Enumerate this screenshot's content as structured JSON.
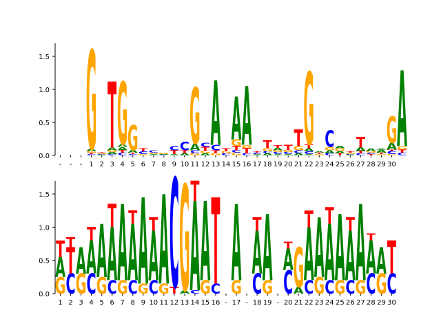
{
  "colors": {
    "A": "#008000",
    "C": "#0000ff",
    "G": "#ffa500",
    "T": "#ff0000"
  },
  "chart_data": [
    {
      "type": "sequence-logo",
      "ylim": [
        0,
        1.75
      ],
      "yticks": [
        "0.0",
        "0.5",
        "1.0",
        "1.5"
      ],
      "xticks": [
        "-",
        "-",
        "-",
        "1",
        "2",
        "3",
        "4",
        "5",
        "6",
        "7",
        "8",
        "9",
        "10",
        "11",
        "12",
        "13",
        "14",
        "15",
        "16",
        "17",
        "18",
        "19",
        "20",
        "21",
        "22",
        "23",
        "24",
        "25",
        "26",
        "27",
        "28",
        "29",
        "30"
      ],
      "positions": [
        [],
        [],
        [],
        [
          [
            "C",
            0.02
          ],
          [
            "T",
            0.02
          ],
          [
            "G",
            0.02
          ],
          [
            "A",
            0.04
          ],
          [
            "G",
            1.5
          ]
        ],
        [
          [
            "A",
            0.01
          ],
          [
            "C",
            0.01
          ],
          [
            "G",
            0.01
          ],
          [
            "T",
            0.01
          ]
        ],
        [
          [
            "C",
            0.02
          ],
          [
            "A",
            0.03
          ],
          [
            "G",
            0.03
          ],
          [
            "A",
            0.04
          ],
          [
            "T",
            1.0
          ]
        ],
        [
          [
            "C",
            0.04
          ],
          [
            "T",
            0.04
          ],
          [
            "A",
            0.05
          ],
          [
            "A",
            0.04
          ],
          [
            "G",
            0.95
          ]
        ],
        [
          [
            "C",
            0.02
          ],
          [
            "T",
            0.02
          ],
          [
            "A",
            0.04
          ],
          [
            "G",
            0.38
          ]
        ],
        [
          [
            "G",
            0.02
          ],
          [
            "C",
            0.04
          ],
          [
            "T",
            0.05
          ]
        ],
        [
          [
            "A",
            0.02
          ],
          [
            "G",
            0.02
          ],
          [
            "C",
            0.03
          ]
        ],
        [
          [
            "C",
            0.01
          ],
          [
            "A",
            0.01
          ],
          [
            "G",
            0.02
          ]
        ],
        [
          [
            "A",
            0.02
          ],
          [
            "T",
            0.06
          ],
          [
            "C",
            0.06
          ]
        ],
        [
          [
            "A",
            0.03
          ],
          [
            "T",
            0.05
          ],
          [
            "C",
            0.13
          ]
        ],
        [
          [
            "G",
            0.03
          ],
          [
            "C",
            0.05
          ],
          [
            "A",
            0.1
          ],
          [
            "G",
            0.85
          ]
        ],
        [
          [
            "A",
            0.03
          ],
          [
            "G",
            0.04
          ],
          [
            "T",
            0.06
          ],
          [
            "C",
            0.06
          ]
        ],
        [
          [
            "G",
            0.03
          ],
          [
            "T",
            0.05
          ],
          [
            "C",
            0.08
          ],
          [
            "A",
            0.98
          ]
        ],
        [
          [
            "C",
            0.03
          ],
          [
            "G",
            0.03
          ],
          [
            "T",
            0.05
          ]
        ],
        [
          [
            "G",
            0.04
          ],
          [
            "C",
            0.04
          ],
          [
            "T",
            0.06
          ],
          [
            "G",
            0.1
          ],
          [
            "A",
            0.65
          ]
        ],
        [
          [
            "C",
            0.03
          ],
          [
            "T",
            0.08
          ],
          [
            "G",
            0.05
          ],
          [
            "A",
            0.89
          ]
        ],
        [
          [
            "A",
            0.02
          ],
          [
            "C",
            0.02
          ],
          [
            "T",
            0.02
          ]
        ],
        [
          [
            "A",
            0.03
          ],
          [
            "C",
            0.03
          ],
          [
            "G",
            0.05
          ],
          [
            "T",
            0.12
          ]
        ],
        [
          [
            "A",
            0.02
          ],
          [
            "C",
            0.03
          ],
          [
            "G",
            0.03
          ],
          [
            "A",
            0.03
          ],
          [
            "T",
            0.05
          ]
        ],
        [
          [
            "A",
            0.02
          ],
          [
            "C",
            0.03
          ],
          [
            "G",
            0.03
          ],
          [
            "T",
            0.08
          ]
        ],
        [
          [
            "A",
            0.03
          ],
          [
            "C",
            0.05
          ],
          [
            "G",
            0.06
          ],
          [
            "T",
            0.25
          ]
        ],
        [
          [
            "A",
            0.02
          ],
          [
            "C",
            0.04
          ],
          [
            "A",
            0.05
          ],
          [
            "T",
            0.06
          ],
          [
            "G",
            1.1
          ]
        ],
        [
          [
            "G",
            0.02
          ],
          [
            "T",
            0.02
          ],
          [
            "A",
            0.02
          ]
        ],
        [
          [
            "C",
            0.03
          ],
          [
            "A",
            0.05
          ],
          [
            "G",
            0.05
          ],
          [
            "C",
            0.25
          ]
        ],
        [
          [
            "T",
            0.03
          ],
          [
            "A",
            0.03
          ],
          [
            "G",
            0.05
          ],
          [
            "A",
            0.03
          ]
        ],
        [
          [
            "A",
            0.01
          ],
          [
            "C",
            0.01
          ],
          [
            "G",
            0.02
          ],
          [
            "T",
            0.02
          ]
        ],
        [
          [
            "C",
            0.03
          ],
          [
            "T",
            0.03
          ],
          [
            "A",
            0.06
          ],
          [
            "T",
            0.16
          ]
        ],
        [
          [
            "T",
            0.02
          ],
          [
            "C",
            0.02
          ],
          [
            "G",
            0.03
          ],
          [
            "A",
            0.03
          ]
        ],
        [
          [
            "G",
            0.02
          ],
          [
            "T",
            0.02
          ],
          [
            "A",
            0.05
          ],
          [
            "A",
            0.01
          ]
        ],
        [
          [
            "G",
            0.02
          ],
          [
            "C",
            0.05
          ],
          [
            "T",
            0.02
          ],
          [
            "A",
            0.1
          ],
          [
            "G",
            0.4
          ]
        ],
        [
          [
            "C",
            0.04
          ],
          [
            "T",
            0.05
          ],
          [
            "G",
            0.05
          ],
          [
            "A",
            1.15
          ]
        ]
      ]
    },
    {
      "type": "sequence-logo",
      "ylim": [
        0,
        1.75
      ],
      "yticks": [
        "0.0",
        "0.5",
        "1.0",
        "1.5"
      ],
      "xticks": [
        "1",
        "2",
        "3",
        "4",
        "5",
        "6",
        "7",
        "8",
        "9",
        "10",
        "11",
        "12",
        "13",
        "14",
        "15",
        "16",
        "-",
        "17",
        "-",
        "18",
        "19",
        "-",
        "20",
        "21",
        "22",
        "23",
        "24",
        "25",
        "26",
        "27",
        "28",
        "29",
        "30"
      ],
      "positions": [
        [
          [
            "G",
            0.25
          ],
          [
            "A",
            0.3
          ],
          [
            "T",
            0.25
          ]
        ],
        [
          [
            "C",
            0.3
          ],
          [
            "T",
            0.4
          ],
          [
            "T",
            0.15
          ]
        ],
        [
          [
            "G",
            0.3
          ],
          [
            "A",
            0.4
          ]
        ],
        [
          [
            "C",
            0.3
          ],
          [
            "A",
            0.5
          ],
          [
            "T",
            0.2
          ]
        ],
        [
          [
            "G",
            0.25
          ],
          [
            "A",
            0.8
          ]
        ],
        [
          [
            "C",
            0.2
          ],
          [
            "A",
            0.8
          ],
          [
            "T",
            0.35
          ]
        ],
        [
          [
            "G",
            0.2
          ],
          [
            "A",
            1.15
          ]
        ],
        [
          [
            "C",
            0.2
          ],
          [
            "A",
            0.85
          ],
          [
            "T",
            0.2
          ]
        ],
        [
          [
            "G",
            0.15
          ],
          [
            "A",
            1.3
          ]
        ],
        [
          [
            "C",
            0.2
          ],
          [
            "A",
            0.75
          ],
          [
            "T",
            0.2
          ]
        ],
        [
          [
            "G",
            0.15
          ],
          [
            "A",
            1.35
          ]
        ],
        [
          [
            "T",
            0.1
          ],
          [
            "C",
            1.65
          ]
        ],
        [
          [
            "A",
            0.05
          ],
          [
            "G",
            1.6
          ]
        ],
        [
          [
            "C",
            0.05
          ],
          [
            "A",
            1.35
          ],
          [
            "T",
            0.3
          ]
        ],
        [
          [
            "G",
            0.2
          ],
          [
            "A",
            1.2
          ]
        ],
        [
          [
            "C",
            0.15
          ],
          [
            "T",
            1.3
          ]
        ],
        [],
        [
          [
            "G",
            0.2
          ],
          [
            "A",
            1.15
          ]
        ],
        [],
        [
          [
            "C",
            0.3
          ],
          [
            "A",
            0.65
          ],
          [
            "T",
            0.2
          ]
        ],
        [
          [
            "G",
            0.2
          ],
          [
            "A",
            1.0
          ]
        ],
        [],
        [
          [
            "C",
            0.35
          ],
          [
            "A",
            0.33
          ],
          [
            "T",
            0.1
          ]
        ],
        [
          [
            "A",
            0.1
          ],
          [
            "G",
            0.6
          ]
        ],
        [
          [
            "C",
            0.2
          ],
          [
            "A",
            0.8
          ],
          [
            "T",
            0.25
          ]
        ],
        [
          [
            "G",
            0.25
          ],
          [
            "A",
            0.9
          ]
        ],
        [
          [
            "C",
            0.2
          ],
          [
            "A",
            0.85
          ],
          [
            "T",
            0.25
          ]
        ],
        [
          [
            "G",
            0.2
          ],
          [
            "A",
            1.0
          ]
        ],
        [
          [
            "C",
            0.2
          ],
          [
            "A",
            0.75
          ],
          [
            "T",
            0.2
          ]
        ],
        [
          [
            "G",
            0.2
          ],
          [
            "A",
            1.15
          ]
        ],
        [
          [
            "C",
            0.3
          ],
          [
            "A",
            0.5
          ],
          [
            "T",
            0.1
          ]
        ],
        [
          [
            "G",
            0.3
          ],
          [
            "A",
            0.4
          ]
        ],
        [
          [
            "C",
            0.3
          ],
          [
            "T",
            0.5
          ]
        ]
      ]
    }
  ]
}
